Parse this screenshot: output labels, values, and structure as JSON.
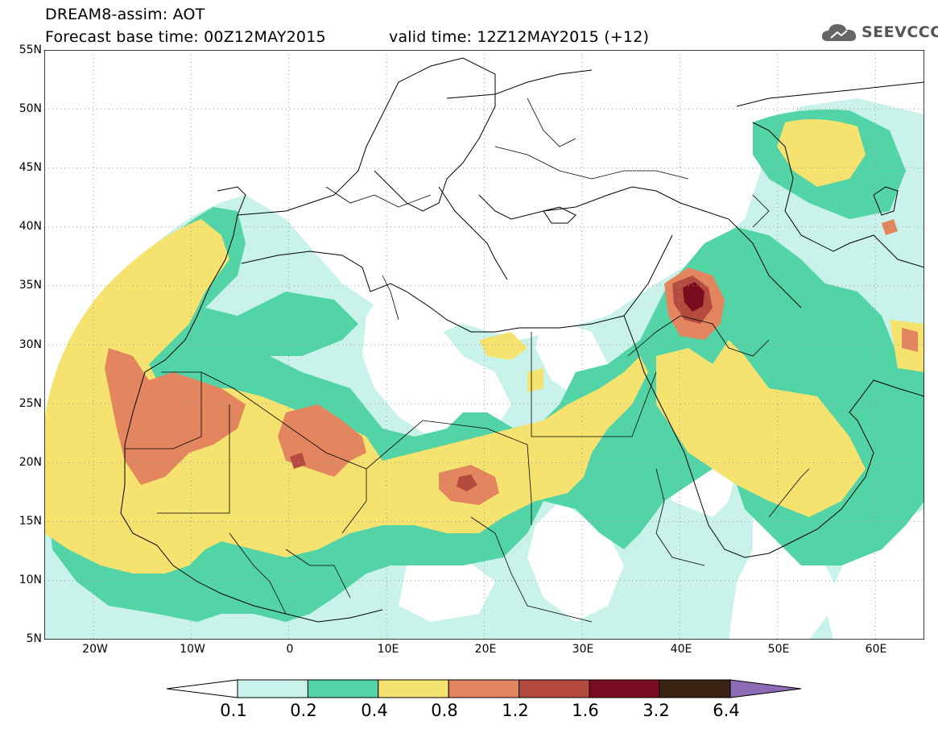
{
  "title": {
    "line1": "DREAM8-assim: AOT",
    "line2": "Forecast base time: 00Z12MAY2015",
    "valid": "valid time: 12Z12MAY2015 (+12)"
  },
  "logo": {
    "text": "SEEVCCC",
    "icon": "cloud-icon"
  },
  "map": {
    "lon_range": [
      -25,
      65
    ],
    "lat_range": [
      5,
      55
    ],
    "lat_ticks": [
      "55N",
      "50N",
      "45N",
      "40N",
      "35N",
      "30N",
      "25N",
      "20N",
      "15N",
      "10N",
      "5N"
    ],
    "lon_ticks": [
      "20W",
      "10W",
      "0",
      "10E",
      "20E",
      "30E",
      "40E",
      "50E",
      "60E"
    ],
    "grid": "dotted",
    "field": "AOT"
  },
  "colorbar": {
    "labels": [
      "0.1",
      "0.2",
      "0.4",
      "0.8",
      "1.2",
      "1.6",
      "3.2",
      "6.4"
    ],
    "colors": [
      "#c8f2ea",
      "#52d4a6",
      "#f5e26f",
      "#e3865f",
      "#b44b3e",
      "#7a0c1f",
      "#3a2414",
      "#8c6cb4"
    ],
    "under_color": "#ffffff"
  }
}
